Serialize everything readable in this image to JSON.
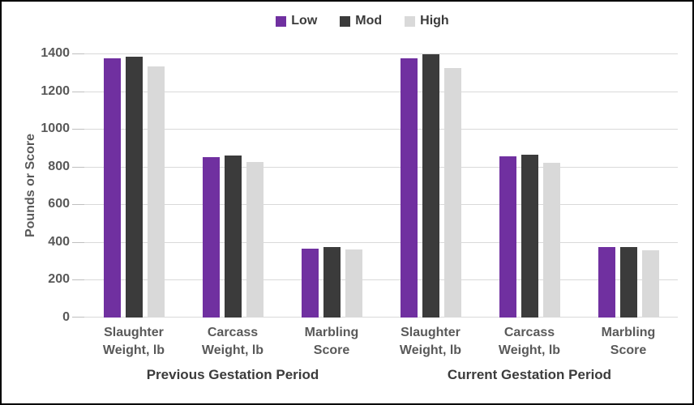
{
  "chart_data": {
    "type": "bar",
    "title": "",
    "ylabel": "Pounds or Score",
    "ylim": [
      0,
      1400
    ],
    "yticks": [
      0,
      200,
      400,
      600,
      800,
      1000,
      1200,
      1400
    ],
    "grid": true,
    "legend_position": "top-center",
    "groups": [
      {
        "label": "Previous Gestation Period",
        "categories": [
          "Slaughter Weight, lb",
          "Carcass Weight, lb",
          "Marbling Score"
        ]
      },
      {
        "label": "Current Gestation Period",
        "categories": [
          "Slaughter Weight, lb",
          "Carcass Weight, lb",
          "Marbling Score"
        ]
      }
    ],
    "series": [
      {
        "name": "Low",
        "color": "#7030A0",
        "values": [
          1375,
          850,
          365,
          1375,
          855,
          375
        ]
      },
      {
        "name": "Mod",
        "color": "#3B3B3B",
        "values": [
          1385,
          860,
          375,
          1395,
          865,
          375
        ]
      },
      {
        "name": "High",
        "color": "#D9D9D9",
        "values": [
          1330,
          825,
          360,
          1325,
          820,
          355
        ]
      }
    ]
  },
  "colors": {
    "background": "#FFFFFF",
    "frame_border": "#000000",
    "gridline": "#D9D9D9",
    "tick": "#BFBFBF",
    "axis_text": "#595959",
    "emphasis_text": "#3B3B3B"
  }
}
